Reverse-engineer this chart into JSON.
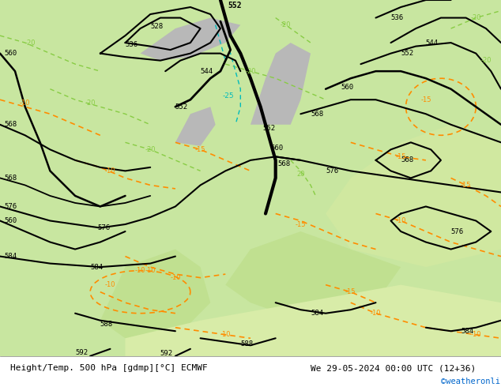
{
  "title_left": "Height/Temp. 500 hPa [gdmp][°C] ECMWF",
  "title_right": "We 29-05-2024 00:00 UTC (12+36)",
  "watermark": "©weatheronline.co.uk",
  "fig_width": 6.34,
  "fig_height": 4.9,
  "bg_color_ocean": "#d4e8f0",
  "bg_color_land_light": "#c8e6a0",
  "bg_color_land_dark": "#b0d080",
  "land_gray": "#c8c8c8",
  "height_color": "#000000",
  "temp_neg_color": "#ff8c00",
  "temp_pos_color": "#00aa00",
  "temp_cyan_color": "#00cccc",
  "bottom_bar_color": "#e8e8e8"
}
